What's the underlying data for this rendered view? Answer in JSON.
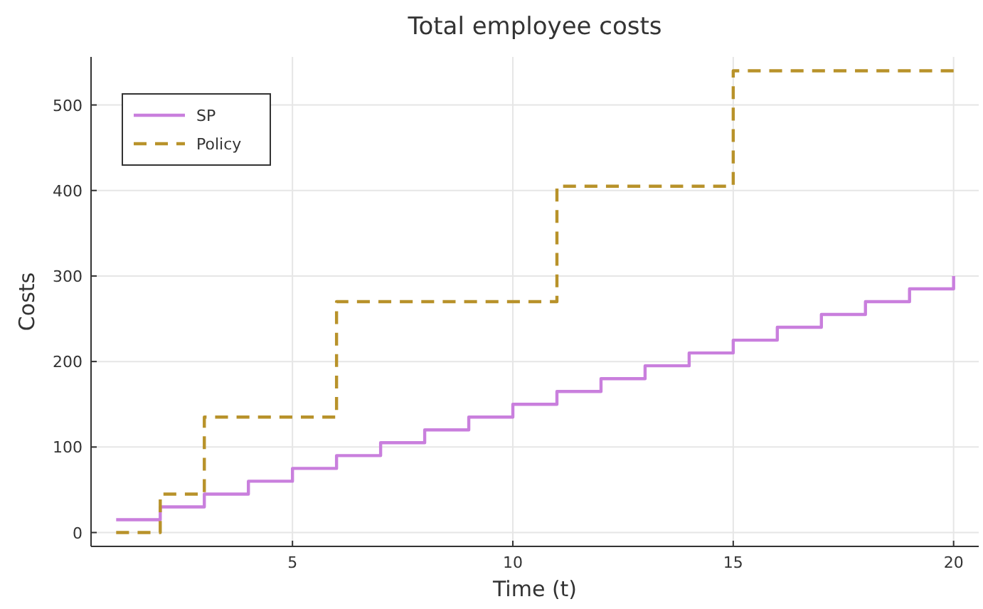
{
  "chart_data": {
    "type": "step",
    "title": "Total employee costs",
    "xlabel": "Time (t)",
    "ylabel": "Costs",
    "x": [
      1,
      2,
      3,
      4,
      5,
      6,
      7,
      8,
      9,
      10,
      11,
      12,
      13,
      14,
      15,
      16,
      17,
      18,
      19,
      20
    ],
    "series": [
      {
        "name": "SP",
        "color": "#c97fdd",
        "line_style": "solid",
        "values": [
          15,
          30,
          45,
          60,
          75,
          90,
          105,
          120,
          135,
          150,
          165,
          180,
          195,
          210,
          225,
          240,
          255,
          270,
          285,
          300
        ]
      },
      {
        "name": "Policy",
        "color": "#b8922a",
        "line_style": "dashed",
        "values": [
          0,
          45,
          135,
          135,
          135,
          270,
          270,
          270,
          270,
          270,
          405,
          405,
          405,
          405,
          540,
          540,
          540,
          540,
          540,
          540
        ]
      }
    ],
    "xlim": [
      0.43,
      20.57
    ],
    "ylim": [
      -16.2,
      556.2
    ],
    "xticks": [
      5,
      10,
      15,
      20
    ],
    "yticks": [
      0,
      100,
      200,
      300,
      400,
      500
    ],
    "grid": true,
    "legend": "top left",
    "marker": "none"
  }
}
